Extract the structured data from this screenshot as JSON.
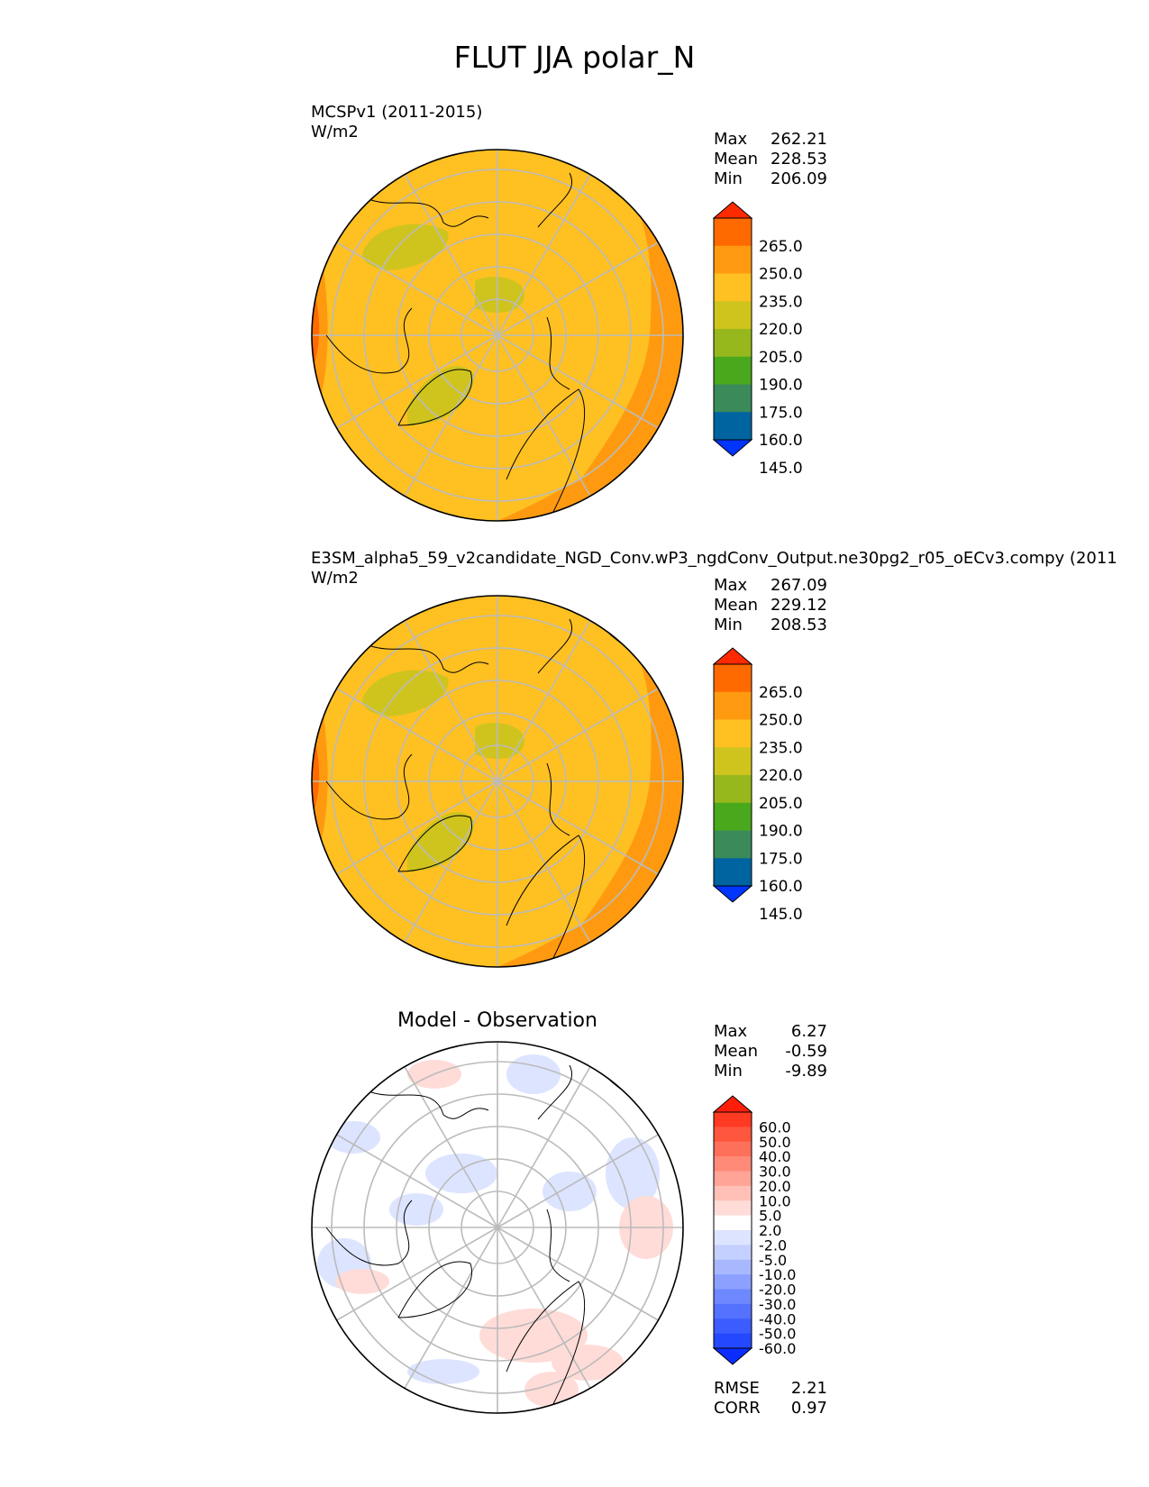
{
  "figure_title": "FLUT JJA polar_N",
  "colors": {
    "main_cmap": [
      "#0034ff",
      "#0064a0",
      "#3a8a5a",
      "#4aa81c",
      "#96b81c",
      "#cfc41e",
      "#ffc022",
      "#ff9a10",
      "#ff6a00",
      "#ff2a00"
    ],
    "diff_cmap": [
      "#0a2cff",
      "#2448ff",
      "#3c5cff",
      "#5472ff",
      "#6e88ff",
      "#8ca0ff",
      "#a8b8ff",
      "#c4d0ff",
      "#dde4ff",
      "#ffffff",
      "#ffdcd8",
      "#ffc0b8",
      "#ffa496",
      "#ff8a78",
      "#ff705a",
      "#ff563e",
      "#ff3a22",
      "#ff1e0a"
    ],
    "land_outline": "#000000",
    "gridline": "#bbbbbb"
  },
  "panels": [
    {
      "title_line1": "MCSPv1 (2011-2015)",
      "title_line2": "W/m2",
      "stats": [
        {
          "label": "Max",
          "value": "262.21"
        },
        {
          "label": "Mean",
          "value": "228.53"
        },
        {
          "label": "Min",
          "value": "206.09"
        }
      ],
      "colorbar_ticks": [
        "265.0",
        "250.0",
        "235.0",
        "220.0",
        "205.0",
        "190.0",
        "175.0",
        "160.0",
        "145.0"
      ]
    },
    {
      "title_line1": "E3SM_alpha5_59_v2candidate_NGD_Conv.wP3_ngdConv_Output.ne30pg2_r05_oECv3.compy (2011",
      "title_line2": "W/m2",
      "stats": [
        {
          "label": "Max",
          "value": "267.09"
        },
        {
          "label": "Mean",
          "value": "229.12"
        },
        {
          "label": "Min",
          "value": "208.53"
        }
      ],
      "colorbar_ticks": [
        "265.0",
        "250.0",
        "235.0",
        "220.0",
        "205.0",
        "190.0",
        "175.0",
        "160.0",
        "145.0"
      ]
    },
    {
      "title": "Model - Observation",
      "stats": [
        {
          "label": "Max",
          "value": "6.27"
        },
        {
          "label": "Mean",
          "value": "-0.59"
        },
        {
          "label": "Min",
          "value": "-9.89"
        }
      ],
      "colorbar_ticks": [
        "60.0",
        "50.0",
        "40.0",
        "30.0",
        "20.0",
        "10.0",
        "5.0",
        "2.0",
        "-2.0",
        "-5.0",
        "-10.0",
        "-20.0",
        "-30.0",
        "-40.0",
        "-50.0",
        "-60.0"
      ],
      "extra_stats": [
        {
          "label": "RMSE",
          "value": "2.21"
        },
        {
          "label": "CORR",
          "value": "0.97"
        }
      ]
    }
  ],
  "chart_data": [
    {
      "type": "heatmap",
      "projection": "north polar stereographic",
      "field": "FLUT",
      "season": "JJA",
      "units": "W/m2",
      "levels": [
        130,
        145,
        160,
        175,
        190,
        205,
        220,
        235,
        250,
        265
      ],
      "max": 262.21,
      "mean": 228.53,
      "min": 206.09
    },
    {
      "type": "heatmap",
      "projection": "north polar stereographic",
      "field": "FLUT",
      "season": "JJA",
      "units": "W/m2",
      "levels": [
        130,
        145,
        160,
        175,
        190,
        205,
        220,
        235,
        250,
        265
      ],
      "max": 267.09,
      "mean": 229.12,
      "min": 208.53
    },
    {
      "type": "heatmap",
      "projection": "north polar stereographic",
      "field": "FLUT difference",
      "season": "JJA",
      "units": "W/m2",
      "levels": [
        -60,
        -50,
        -40,
        -30,
        -20,
        -10,
        -5,
        -2,
        2,
        5,
        10,
        20,
        30,
        40,
        50,
        60
      ],
      "max": 6.27,
      "mean": -0.59,
      "min": -9.89,
      "rmse": 2.21,
      "corr": 0.97
    }
  ]
}
